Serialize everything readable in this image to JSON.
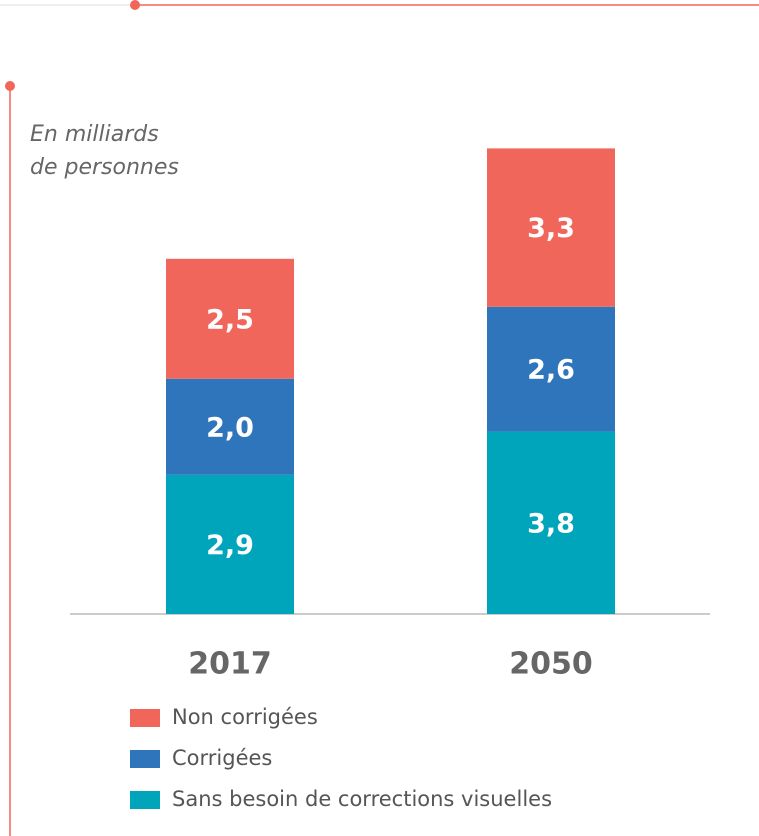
{
  "chart_data": {
    "type": "stacked_bar",
    "subtitle": [
      "En milliards",
      "de personnes"
    ],
    "categories": [
      "2017",
      "2050"
    ],
    "series": [
      {
        "name": "Sans besoin de corrections visuelles",
        "color": "#00a5bc",
        "values": [
          2.9,
          3.8
        ],
        "value_labels": [
          "2,9",
          "3,8"
        ]
      },
      {
        "name": "Corrigées",
        "color": "#2e75bc",
        "values": [
          2.0,
          2.6
        ],
        "value_labels": [
          "2,0",
          "2,6"
        ]
      },
      {
        "name": "Non corrigées",
        "color": "#f0665a",
        "values": [
          2.5,
          3.3
        ],
        "value_labels": [
          "2,5",
          "3,3"
        ]
      }
    ]
  }
}
